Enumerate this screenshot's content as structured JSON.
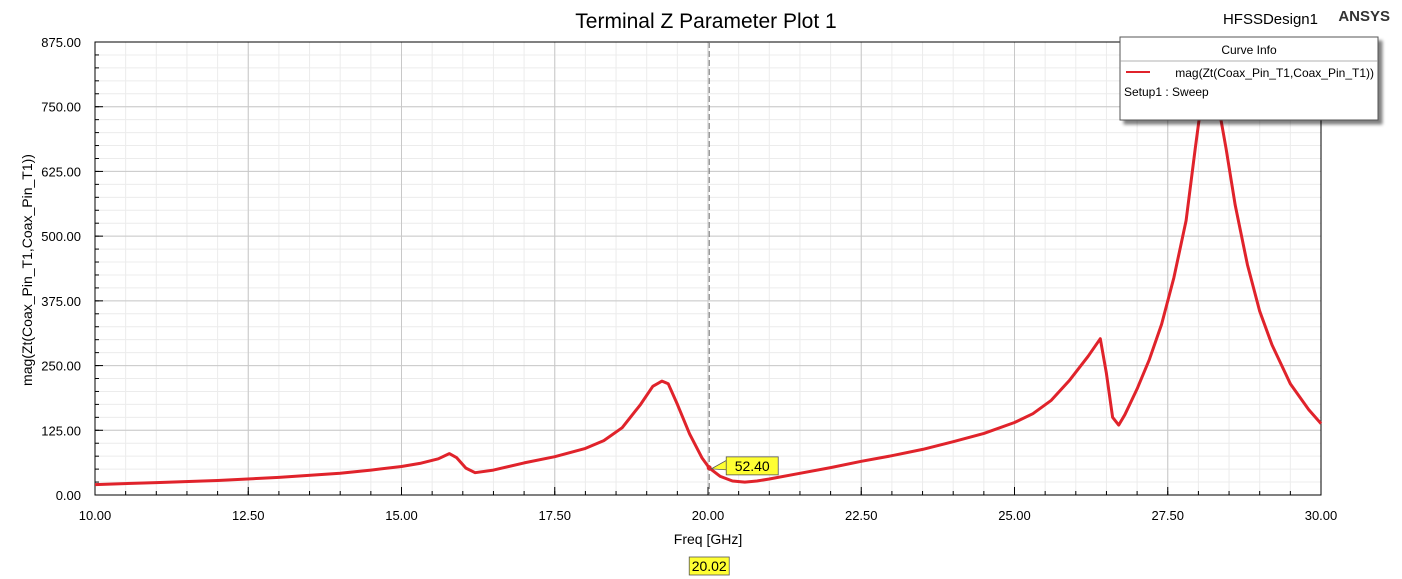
{
  "header": {
    "title": "Terminal Z Parameter Plot 1",
    "design_name": "HFSSDesign1",
    "brand": "ANSYS"
  },
  "legend": {
    "title": "Curve Info",
    "entries": [
      {
        "name": "mag(Zt(Coax_Pin_T1,Coax_Pin_T1))",
        "subtitle": "Setup1 : Sweep",
        "color": "#e0232b"
      }
    ]
  },
  "marker": {
    "x_label": "20.02",
    "y_label": "52.40",
    "x_value": 20.02,
    "y_value": 52.4
  },
  "chart_data": {
    "type": "line",
    "xlabel": "Freq [GHz]",
    "ylabel": "mag(Zt(Coax_Pin_T1,Coax_Pin_T1))",
    "xlim": [
      10,
      30
    ],
    "ylim": [
      0,
      875
    ],
    "x_ticks": [
      "10.00",
      "12.50",
      "15.00",
      "17.50",
      "20.00",
      "22.50",
      "25.00",
      "27.50",
      "30.00"
    ],
    "y_ticks": [
      "0.00",
      "125.00",
      "250.00",
      "375.00",
      "500.00",
      "625.00",
      "750.00",
      "875.00"
    ],
    "grid": true,
    "legend_position": "top-right",
    "series": [
      {
        "name": "mag(Zt(Coax_Pin_T1,Coax_Pin_T1))",
        "color": "#e0232b",
        "x": [
          10.0,
          11.0,
          12.0,
          13.0,
          14.0,
          14.5,
          15.0,
          15.3,
          15.6,
          15.78,
          15.9,
          16.05,
          16.2,
          16.5,
          17.0,
          17.5,
          18.0,
          18.3,
          18.6,
          18.9,
          19.1,
          19.25,
          19.35,
          19.5,
          19.7,
          19.9,
          20.02,
          20.2,
          20.4,
          20.6,
          20.8,
          21.0,
          21.5,
          22.0,
          22.5,
          23.0,
          23.5,
          24.0,
          24.5,
          25.0,
          25.3,
          25.6,
          25.9,
          26.2,
          26.4,
          26.5,
          26.6,
          26.7,
          26.8,
          27.0,
          27.2,
          27.4,
          27.6,
          27.8,
          27.95,
          28.05,
          28.15,
          28.3,
          28.45,
          28.6,
          28.8,
          29.0,
          29.2,
          29.5,
          29.8,
          30.0
        ],
        "y": [
          20,
          24,
          28,
          34,
          42,
          48,
          55,
          61,
          70,
          80,
          72,
          52,
          43,
          48,
          62,
          74,
          90,
          105,
          130,
          175,
          210,
          220,
          215,
          175,
          118,
          72,
          52.4,
          36,
          27,
          25,
          27,
          31,
          42,
          53,
          65,
          76,
          88,
          103,
          119,
          140,
          157,
          183,
          222,
          268,
          302,
          235,
          150,
          135,
          155,
          205,
          262,
          330,
          420,
          530,
          670,
          760,
          790,
          770,
          670,
          560,
          445,
          355,
          290,
          215,
          165,
          138
        ]
      }
    ]
  }
}
